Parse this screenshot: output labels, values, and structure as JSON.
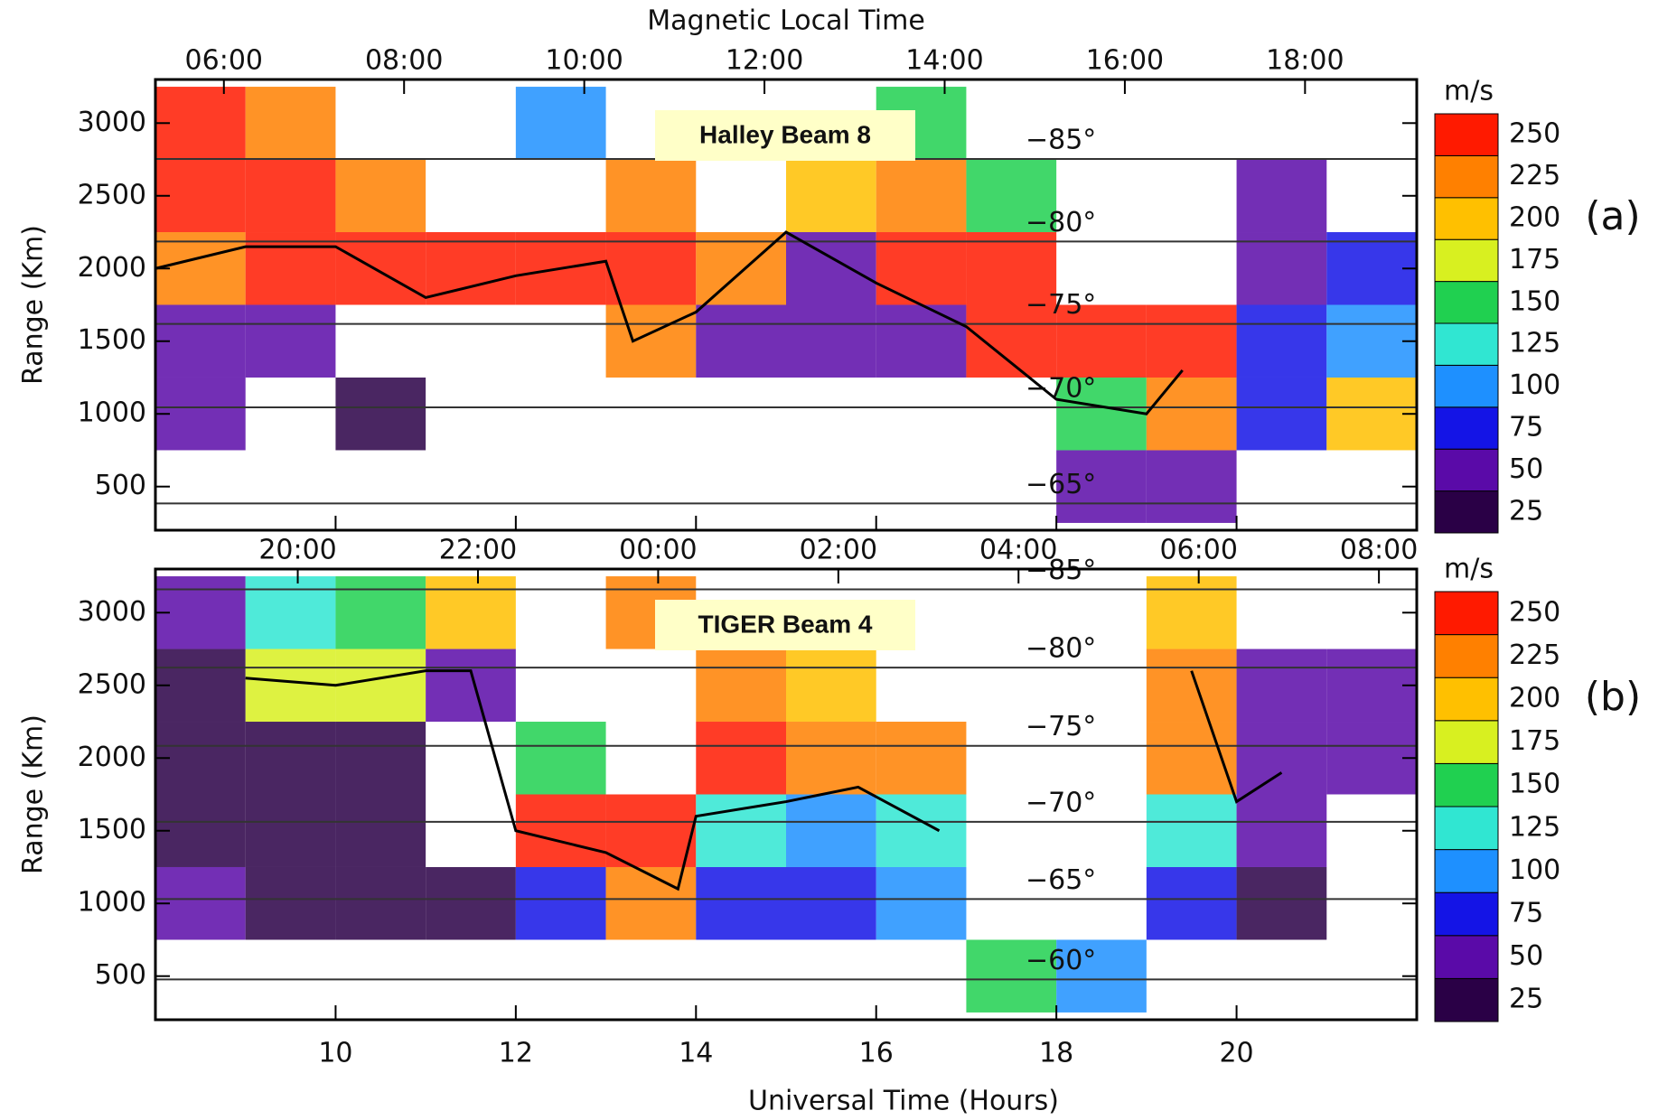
{
  "chart_data": [
    {
      "type": "heatmap",
      "title": "Halley Beam 8",
      "panel_label": "(a)",
      "top_axis_label": "Magnetic Local Time",
      "ylabel": "Range (Km)",
      "xlim": [
        8,
        22
      ],
      "ylim": [
        200,
        3300
      ],
      "yticks": [
        500,
        1000,
        1500,
        2000,
        2500,
        3000
      ],
      "x2lim": [
        5.24,
        19.24
      ],
      "x2ticks": [
        {
          "value": 6,
          "label": "06:00"
        },
        {
          "value": 8,
          "label": "08:00"
        },
        {
          "value": 10,
          "label": "10:00"
        },
        {
          "value": 12,
          "label": "12:00"
        },
        {
          "value": 14,
          "label": "14:00"
        },
        {
          "value": 16,
          "label": "16:00"
        },
        {
          "value": 18,
          "label": "18:00"
        }
      ],
      "x_bins": [
        8,
        9,
        10,
        11,
        12,
        13,
        14,
        15,
        16,
        17,
        18,
        19,
        20,
        21,
        22
      ],
      "y_bins": [
        250,
        750,
        1250,
        1750,
        2250,
        2750,
        3250
      ],
      "values": [
        [
          null,
          null,
          null,
          null,
          null,
          null,
          null,
          null,
          null,
          null,
          50,
          60,
          null,
          null
        ],
        [
          40,
          null,
          30,
          null,
          null,
          null,
          null,
          null,
          null,
          null,
          150,
          230,
          80,
          200
        ],
        [
          60,
          40,
          null,
          null,
          null,
          230,
          50,
          40,
          40,
          240,
          250,
          250,
          80,
          100
        ],
        [
          230,
          250,
          250,
          240,
          250,
          250,
          220,
          60,
          240,
          240,
          null,
          null,
          50,
          80
        ],
        [
          240,
          250,
          230,
          null,
          null,
          230,
          null,
          210,
          220,
          150,
          null,
          null,
          60,
          null
        ],
        [
          240,
          230,
          null,
          null,
          100,
          null,
          null,
          null,
          150,
          null,
          null,
          null,
          null,
          null
        ]
      ],
      "series": [
        {
          "color": "#000000",
          "x": [
            8,
            9,
            10,
            11,
            12,
            13,
            13.3,
            14,
            15,
            16,
            17,
            18,
            19,
            19.4
          ],
          "values": [
            2000,
            2150,
            2150,
            1800,
            1950,
            2050,
            1500,
            1700,
            2250,
            1900,
            1600,
            1100,
            1000,
            1300
          ]
        }
      ],
      "contours": [
        {
          "label": "−85°",
          "range": 2753
        },
        {
          "label": "−80°",
          "range": 2186
        },
        {
          "label": "−75°",
          "range": 1619
        },
        {
          "label": "−70°",
          "range": 1045
        },
        {
          "label": "−65°",
          "range": 384
        }
      ],
      "colorbar": {
        "title": "m/s",
        "ticks": [
          25,
          50,
          75,
          100,
          125,
          150,
          175,
          200,
          225,
          250
        ],
        "colors": [
          "#2a0046",
          "#5a0aa8",
          "#1414e6",
          "#1e90ff",
          "#30e6d2",
          "#20d050",
          "#d8f020",
          "#ffc000",
          "#ff8000",
          "#ff1a00"
        ]
      }
    },
    {
      "type": "heatmap",
      "title": "TIGER Beam 4",
      "panel_label": "(b)",
      "ylabel": "Range (Km)",
      "xlabel": "Universal Time (Hours)",
      "xlim": [
        8,
        22
      ],
      "xticks": [
        10,
        12,
        14,
        16,
        18,
        20
      ],
      "ylim": [
        200,
        3300
      ],
      "yticks": [
        500,
        1000,
        1500,
        2000,
        2500,
        3000
      ],
      "x2lim": [
        18.42,
        32.42
      ],
      "x2ticks": [
        {
          "value": 20,
          "label": "20:00"
        },
        {
          "value": 22,
          "label": "22:00"
        },
        {
          "value": 24,
          "label": "00:00"
        },
        {
          "value": 26,
          "label": "02:00"
        },
        {
          "value": 28,
          "label": "04:00"
        },
        {
          "value": 30,
          "label": "06:00"
        },
        {
          "value": 32,
          "label": "08:00"
        }
      ],
      "x_bins": [
        8,
        9,
        10,
        11,
        12,
        13,
        14,
        15,
        16,
        17,
        18,
        19,
        20,
        21,
        22
      ],
      "y_bins": [
        250,
        750,
        1250,
        1750,
        2250,
        2750,
        3250
      ],
      "values": [
        [
          null,
          null,
          null,
          null,
          null,
          null,
          null,
          null,
          null,
          150,
          100,
          null,
          null,
          null
        ],
        [
          40,
          30,
          30,
          30,
          70,
          230,
          70,
          70,
          90,
          null,
          null,
          70,
          30,
          null
        ],
        [
          30,
          30,
          30,
          null,
          240,
          240,
          120,
          100,
          120,
          null,
          null,
          120,
          60,
          null
        ],
        [
          25,
          30,
          30,
          null,
          150,
          null,
          240,
          230,
          220,
          null,
          null,
          230,
          50,
          40
        ],
        [
          30,
          170,
          170,
          40,
          null,
          null,
          230,
          200,
          null,
          null,
          null,
          220,
          50,
          40
        ],
        [
          40,
          120,
          150,
          200,
          null,
          220,
          null,
          null,
          null,
          null,
          null,
          200,
          null,
          null
        ]
      ],
      "series": [
        {
          "color": "#000000",
          "x": [
            9,
            10,
            11,
            11.5,
            12,
            13,
            13.8,
            14,
            15,
            15.8,
            16.7,
            18,
            19.5,
            20,
            20.5
          ],
          "values": [
            2550,
            2500,
            2600,
            2600,
            1500,
            1350,
            1100,
            1600,
            1700,
            1800,
            1500,
            null,
            2600,
            1700,
            1900
          ]
        }
      ],
      "contours": [
        {
          "label": "−85°",
          "range": 3160
        },
        {
          "label": "−80°",
          "range": 2622
        },
        {
          "label": "−75°",
          "range": 2084
        },
        {
          "label": "−70°",
          "range": 1561
        },
        {
          "label": "−65°",
          "range": 1030
        },
        {
          "label": "−60°",
          "range": 477
        }
      ],
      "colorbar": {
        "title": "m/s",
        "ticks": [
          25,
          50,
          75,
          100,
          125,
          150,
          175,
          200,
          225,
          250
        ],
        "colors": [
          "#2a0046",
          "#5a0aa8",
          "#1414e6",
          "#1e90ff",
          "#30e6d2",
          "#20d050",
          "#d8f020",
          "#ffc000",
          "#ff8000",
          "#ff1a00"
        ]
      }
    }
  ]
}
